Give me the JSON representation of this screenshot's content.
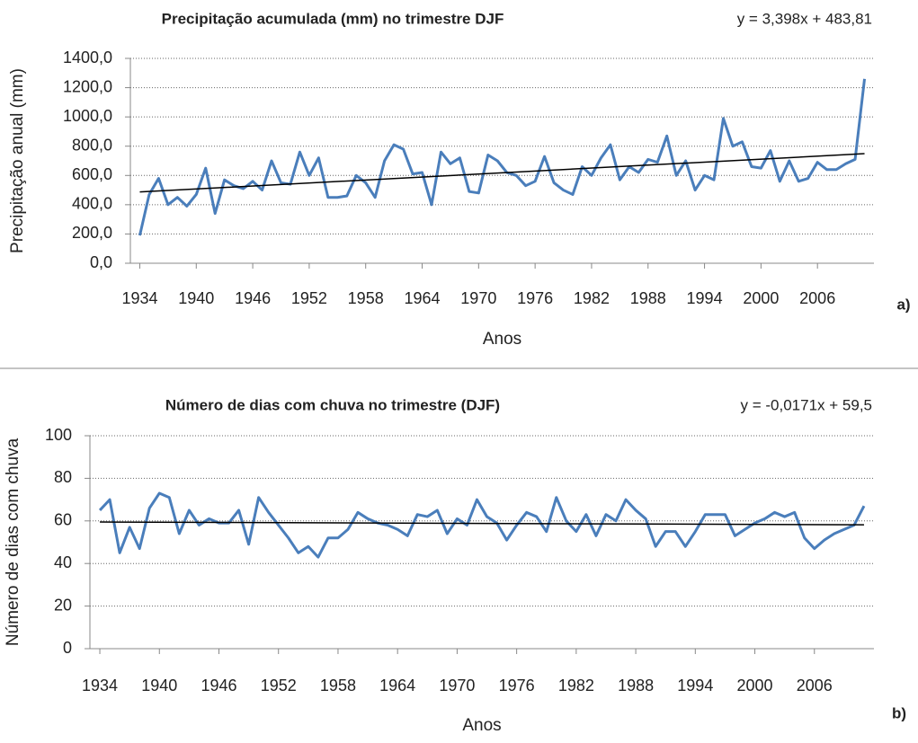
{
  "chart_data": [
    {
      "type": "line",
      "title": "Precipitação acumulada (mm) no trimestre DJF",
      "equation": "y = 3,398x + 483,81",
      "xlabel": "Anos",
      "ylabel": "Precipitação anual (mm)",
      "panel_label": "a)",
      "x": [
        1934,
        1935,
        1936,
        1937,
        1938,
        1939,
        1940,
        1941,
        1942,
        1943,
        1944,
        1945,
        1946,
        1947,
        1948,
        1949,
        1950,
        1951,
        1952,
        1953,
        1954,
        1955,
        1956,
        1957,
        1958,
        1959,
        1960,
        1961,
        1962,
        1963,
        1964,
        1965,
        1966,
        1967,
        1968,
        1969,
        1970,
        1971,
        1972,
        1973,
        1974,
        1975,
        1976,
        1977,
        1978,
        1979,
        1980,
        1981,
        1982,
        1983,
        1984,
        1985,
        1986,
        1987,
        1988,
        1989,
        1990,
        1991,
        1992,
        1993,
        1994,
        1995,
        1996,
        1997,
        1998,
        1999,
        2000,
        2001,
        2002,
        2003,
        2004,
        2005,
        2006,
        2007,
        2008,
        2009,
        2010,
        2011
      ],
      "values": [
        190,
        470,
        580,
        400,
        450,
        390,
        470,
        650,
        340,
        570,
        530,
        510,
        560,
        500,
        700,
        550,
        540,
        760,
        600,
        720,
        450,
        450,
        460,
        600,
        550,
        450,
        700,
        810,
        780,
        610,
        620,
        400,
        760,
        680,
        720,
        490,
        480,
        740,
        700,
        620,
        600,
        530,
        560,
        730,
        550,
        500,
        470,
        660,
        600,
        720,
        810,
        570,
        660,
        620,
        710,
        690,
        870,
        600,
        700,
        500,
        600,
        570,
        990,
        800,
        830,
        660,
        650,
        770,
        560,
        700,
        560,
        580,
        690,
        640,
        640,
        680,
        710,
        1260
      ],
      "color": "#4a7ebb",
      "trendline": {
        "x": [
          1934,
          2011
        ],
        "values": [
          487.2,
          748.9
        ],
        "color": "#000000"
      },
      "xlim": [
        1933,
        2012
      ],
      "xticks": [
        1934,
        1940,
        1946,
        1952,
        1958,
        1964,
        1970,
        1976,
        1982,
        1988,
        1994,
        2000,
        2006
      ],
      "ylim": [
        0,
        1400
      ],
      "yticks": [
        {
          "value": 0,
          "label": "0,0"
        },
        {
          "value": 200,
          "label": "200,0"
        },
        {
          "value": 400,
          "label": "400,0"
        },
        {
          "value": 600,
          "label": "600,0"
        },
        {
          "value": 800,
          "label": "800,0"
        },
        {
          "value": 1000,
          "label": "1000,0"
        },
        {
          "value": 1200,
          "label": "1200,0"
        },
        {
          "value": 1400,
          "label": "1400,0"
        }
      ],
      "grid": true
    },
    {
      "type": "line",
      "title": "Número de dias com chuva no trimestre (DJF)",
      "equation": "y = -0,0171x + 59,5",
      "xlabel": "Anos",
      "ylabel": "Número de dias com chuva",
      "panel_label": "b)",
      "x": [
        1934,
        1935,
        1936,
        1937,
        1938,
        1939,
        1940,
        1941,
        1942,
        1943,
        1944,
        1945,
        1946,
        1947,
        1948,
        1949,
        1950,
        1951,
        1952,
        1953,
        1954,
        1955,
        1956,
        1957,
        1958,
        1959,
        1960,
        1961,
        1962,
        1963,
        1964,
        1965,
        1966,
        1967,
        1968,
        1969,
        1970,
        1971,
        1972,
        1973,
        1974,
        1975,
        1976,
        1977,
        1978,
        1979,
        1980,
        1981,
        1982,
        1983,
        1984,
        1985,
        1986,
        1987,
        1988,
        1989,
        1990,
        1991,
        1992,
        1993,
        1994,
        1995,
        1996,
        1997,
        1998,
        1999,
        2000,
        2001,
        2002,
        2003,
        2004,
        2005,
        2006,
        2007,
        2008,
        2009,
        2010,
        2011
      ],
      "values": [
        65,
        70,
        45,
        57,
        47,
        66,
        73,
        71,
        54,
        65,
        58,
        61,
        59,
        59,
        65,
        49,
        71,
        64,
        58,
        52,
        45,
        48,
        43,
        52,
        52,
        56,
        64,
        61,
        59,
        58,
        56,
        53,
        63,
        62,
        65,
        54,
        61,
        58,
        70,
        62,
        59,
        51,
        58,
        64,
        62,
        55,
        71,
        60,
        55,
        63,
        53,
        63,
        60,
        70,
        65,
        61,
        48,
        55,
        55,
        48,
        55,
        63,
        63,
        63,
        53,
        56,
        59,
        61,
        64,
        62,
        64,
        52,
        47,
        51,
        54,
        56,
        58,
        67
      ],
      "color": "#4a7ebb",
      "trendline": {
        "x": [
          1934,
          2011
        ],
        "values": [
          59.48,
          58.17
        ],
        "color": "#000000"
      },
      "xlim": [
        1933,
        2012
      ],
      "xticks": [
        1934,
        1940,
        1946,
        1952,
        1958,
        1964,
        1970,
        1976,
        1982,
        1988,
        1994,
        2000,
        2006
      ],
      "ylim": [
        0,
        100
      ],
      "yticks": [
        0,
        20,
        40,
        60,
        80,
        100
      ],
      "grid": true
    }
  ]
}
